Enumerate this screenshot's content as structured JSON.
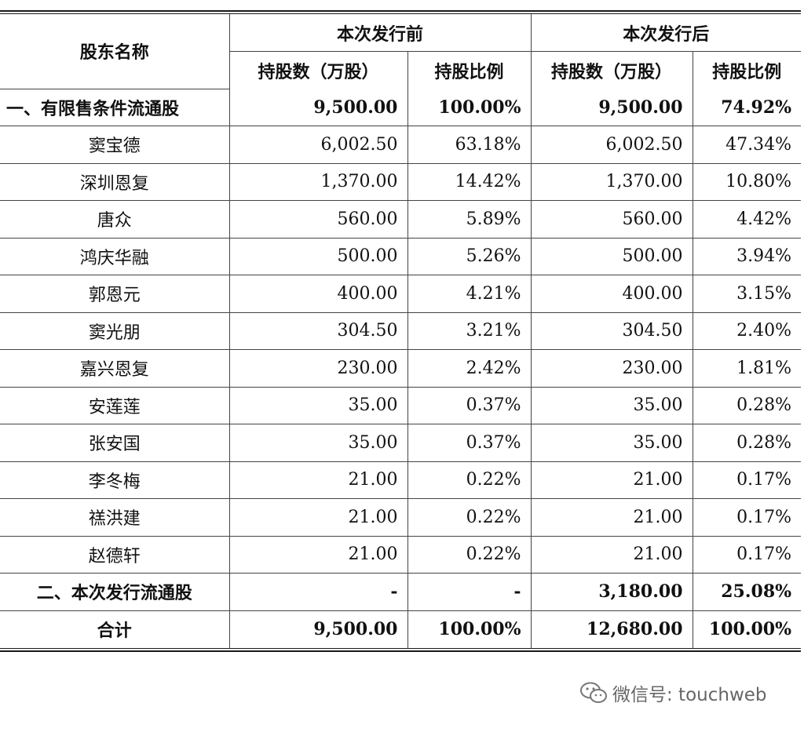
{
  "header": {
    "shareholder": "股东名称",
    "before": "本次发行前",
    "after": "本次发行后",
    "shares": "持股数（万股）",
    "ratio": "持股比例"
  },
  "rows": [
    {
      "name": "一、有限售条件流通股",
      "before_shares": "9,500.00",
      "before_ratio": "100.00%",
      "after_shares": "9,500.00",
      "after_ratio": "74.92%"
    },
    {
      "name": "窦宝德",
      "before_shares": "6,002.50",
      "before_ratio": "63.18%",
      "after_shares": "6,002.50",
      "after_ratio": "47.34%"
    },
    {
      "name": "深圳恩复",
      "before_shares": "1,370.00",
      "before_ratio": "14.42%",
      "after_shares": "1,370.00",
      "after_ratio": "10.80%"
    },
    {
      "name": "唐众",
      "before_shares": "560.00",
      "before_ratio": "5.89%",
      "after_shares": "560.00",
      "after_ratio": "4.42%"
    },
    {
      "name": "鸿庆华融",
      "before_shares": "500.00",
      "before_ratio": "5.26%",
      "after_shares": "500.00",
      "after_ratio": "3.94%"
    },
    {
      "name": "郭恩元",
      "before_shares": "400.00",
      "before_ratio": "4.21%",
      "after_shares": "400.00",
      "after_ratio": "3.15%"
    },
    {
      "name": "窦光朋",
      "before_shares": "304.50",
      "before_ratio": "3.21%",
      "after_shares": "304.50",
      "after_ratio": "2.40%"
    },
    {
      "name": "嘉兴恩复",
      "before_shares": "230.00",
      "before_ratio": "2.42%",
      "after_shares": "230.00",
      "after_ratio": "1.81%"
    },
    {
      "name": "安莲莲",
      "before_shares": "35.00",
      "before_ratio": "0.37%",
      "after_shares": "35.00",
      "after_ratio": "0.28%"
    },
    {
      "name": "张安国",
      "before_shares": "35.00",
      "before_ratio": "0.37%",
      "after_shares": "35.00",
      "after_ratio": "0.28%"
    },
    {
      "name": "李冬梅",
      "before_shares": "21.00",
      "before_ratio": "0.22%",
      "after_shares": "21.00",
      "after_ratio": "0.17%"
    },
    {
      "name": "禚洪建",
      "before_shares": "21.00",
      "before_ratio": "0.22%",
      "after_shares": "21.00",
      "after_ratio": "0.17%"
    },
    {
      "name": "赵德轩",
      "before_shares": "21.00",
      "before_ratio": "0.22%",
      "after_shares": "21.00",
      "after_ratio": "0.17%"
    },
    {
      "name": "二、本次发行流通股",
      "before_shares": "-",
      "before_ratio": "-",
      "after_shares": "3,180.00",
      "after_ratio": "25.08%"
    },
    {
      "name": "合计",
      "before_shares": "9,500.00",
      "before_ratio": "100.00%",
      "after_shares": "12,680.00",
      "after_ratio": "100.00%"
    }
  ],
  "watermark": {
    "icon": "wechat-icon",
    "text": "微信号: touchweb"
  }
}
